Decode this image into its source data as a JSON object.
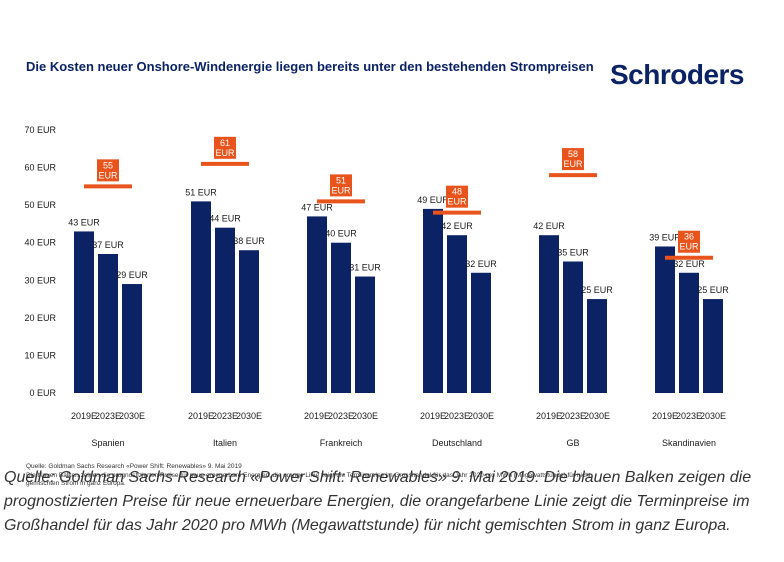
{
  "header": {
    "title": "Die Kosten neuer Onshore-Windenergie liegen bereits unter den bestehenden Strompreisen",
    "brand": "Schroders"
  },
  "chart_data": {
    "type": "bar",
    "title": "Die Kosten neuer Onshore-Windenergie liegen bereits unter den bestehenden Strompreisen",
    "ylim": [
      0,
      70
    ],
    "yticks": [
      "0 EUR",
      "10 EUR",
      "20 EUR",
      "30 EUR",
      "40 EUR",
      "50 EUR",
      "60 EUR",
      "70 EUR"
    ],
    "ytick_values": [
      0,
      10,
      20,
      30,
      40,
      50,
      60,
      70
    ],
    "period_labels": [
      "2019E",
      "2023E",
      "2030E"
    ],
    "bar_color": "#0b2265",
    "line_color": "#e8541c",
    "groups": [
      {
        "country": "Spanien",
        "values": [
          43,
          37,
          29
        ],
        "labels": [
          "43 EUR",
          "37 EUR",
          "29 EUR"
        ],
        "forward_price": 55,
        "forward_label": [
          "55",
          "EUR"
        ]
      },
      {
        "country": "Italien",
        "values": [
          51,
          44,
          38
        ],
        "labels": [
          "51 EUR",
          "44 EUR",
          "38 EUR"
        ],
        "forward_price": 61,
        "forward_label": [
          "61",
          "EUR"
        ]
      },
      {
        "country": "Frankreich",
        "values": [
          47,
          40,
          31
        ],
        "labels": [
          "47 EUR",
          "40 EUR",
          "31 EUR"
        ],
        "forward_price": 51,
        "forward_label": [
          "51",
          "EUR"
        ]
      },
      {
        "country": "Deutschland",
        "values": [
          49,
          42,
          32
        ],
        "labels": [
          "49 EUR",
          "42 EUR",
          "32 EUR"
        ],
        "forward_price": 48,
        "forward_label": [
          "48",
          "EUR"
        ]
      },
      {
        "country": "GB",
        "values": [
          42,
          35,
          25
        ],
        "labels": [
          "42 EUR",
          "35 EUR",
          "25 EUR"
        ],
        "forward_price": 58,
        "forward_label": [
          "58",
          "EUR"
        ]
      },
      {
        "country": "Skandinavien",
        "values": [
          39,
          32,
          25
        ],
        "labels": [
          "39 EUR",
          "32 EUR",
          "25 EUR"
        ],
        "forward_price": 36,
        "forward_label": [
          "36",
          "EUR"
        ]
      }
    ]
  },
  "source_note": {
    "line1": "Quelle: Goldman Sachs Research «Power Shift: Renewables» 9. Mai 2019",
    "line2": "Die blauen Balken zeigen die prognostizierten Preise für neue erneuerbare Energien, die orange Linie zeigt die Terminpreise im Grosshandel für das Jahr 2020 pro MWh (Megawattstunde) für nicht",
    "line3": "gemischten Strom in ganz Europa."
  },
  "caption": "Quelle: Goldman Sachs Research «Power Shift: Renewables» 9. Mai 2019. Die blauen Balken zeigen die prognostizierten Preise für neue erneuerbare Energien, die orangefarbene Linie zeigt die Terminpreise im Großhandel für das Jahr 2020 pro MWh (Megawattstunde) für nicht gemischten Strom in ganz Europa."
}
